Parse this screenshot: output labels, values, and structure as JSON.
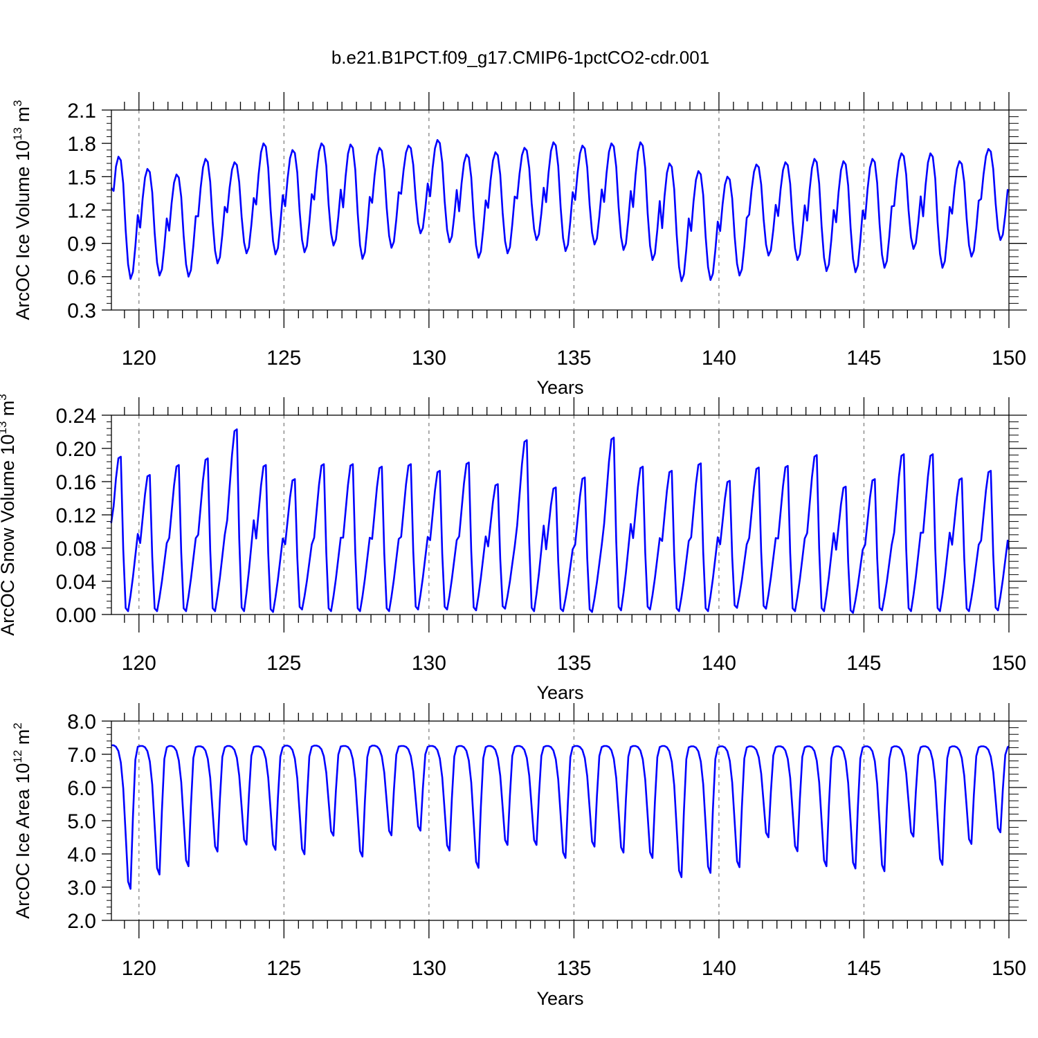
{
  "title": "b.e21.B1PCT.f09_g17.CMIP6-1pctCO2-cdr.001",
  "colors": {
    "series": "#0000ff",
    "axes": "#000000",
    "grid": "#777777"
  },
  "chart_data": [
    {
      "type": "line",
      "ylabel_main": "ArcOC Ice Volume 10",
      "ylabel_sup": "13",
      "ylabel_unit": " m",
      "ylabel_unit_sup": "3",
      "xlabel": "Years",
      "xlim": [
        119.05,
        150.0
      ],
      "ylim": [
        0.3,
        2.1
      ],
      "yticks": [
        0.3,
        0.6,
        0.9,
        1.2,
        1.5,
        1.8,
        2.1
      ],
      "ytick_labels": [
        "0.3",
        "0.6",
        "0.9",
        "1.2",
        "1.5",
        "1.8",
        "2.1"
      ],
      "xticks": [
        120,
        125,
        130,
        135,
        140,
        145,
        150
      ],
      "xtick_labels": [
        "120",
        "125",
        "130",
        "135",
        "140",
        "145",
        "150"
      ],
      "grid_x": "dashed vertical lines at major x ticks",
      "series": [
        {
          "x_start": 119.042,
          "x_step": 0.08333,
          "annual_max": [
            1.68,
            1.57,
            1.52,
            1.66,
            1.63,
            1.8,
            1.74,
            1.8,
            1.79,
            1.76,
            1.78,
            1.83,
            1.7,
            1.72,
            1.76,
            1.81,
            1.78,
            1.8,
            1.81,
            1.62,
            1.55,
            1.5,
            1.61,
            1.63,
            1.66,
            1.64,
            1.66,
            1.71,
            1.71,
            1.64,
            1.75
          ],
          "annual_min": [
            0.58,
            0.61,
            0.6,
            0.72,
            0.81,
            0.8,
            0.82,
            0.88,
            0.76,
            0.86,
            0.99,
            0.91,
            0.77,
            0.81,
            0.93,
            0.83,
            0.89,
            0.84,
            0.75,
            0.56,
            0.57,
            0.61,
            0.79,
            0.75,
            0.65,
            0.64,
            0.68,
            0.85,
            0.68,
            0.78,
            0.93
          ],
          "start_value": 1.4,
          "end_value": 1.36
        }
      ]
    },
    {
      "type": "line",
      "ylabel_main": "ArcOC Snow Volume 10",
      "ylabel_sup": "13",
      "ylabel_unit": " m",
      "ylabel_unit_sup": "3",
      "xlabel": "Years",
      "xlim": [
        119.05,
        150.0
      ],
      "ylim": [
        0.0,
        0.24
      ],
      "yticks": [
        0.0,
        0.04,
        0.08,
        0.12,
        0.16,
        0.2,
        0.24
      ],
      "ytick_labels": [
        "0.00",
        "0.04",
        "0.08",
        "0.12",
        "0.16",
        "0.20",
        "0.24"
      ],
      "xticks": [
        120,
        125,
        130,
        135,
        140,
        145,
        150
      ],
      "xtick_labels": [
        "120",
        "125",
        "130",
        "135",
        "140",
        "145",
        "150"
      ],
      "grid_x": "dashed vertical lines at major x ticks",
      "series": [
        {
          "x_start": 119.042,
          "x_step": 0.08333,
          "annual_max": [
            0.19,
            0.168,
            0.18,
            0.188,
            0.223,
            0.18,
            0.163,
            0.181,
            0.181,
            0.178,
            0.181,
            0.173,
            0.183,
            0.157,
            0.21,
            0.153,
            0.165,
            0.213,
            0.178,
            0.173,
            0.182,
            0.161,
            0.177,
            0.179,
            0.192,
            0.154,
            0.163,
            0.193,
            0.193,
            0.164,
            0.173
          ],
          "annual_min": [
            0.004,
            0.004,
            0.004,
            0.004,
            0.004,
            0.003,
            0.006,
            0.004,
            0.004,
            0.004,
            0.006,
            0.006,
            0.005,
            0.007,
            0.004,
            0.004,
            0.003,
            0.005,
            0.006,
            0.004,
            0.004,
            0.008,
            0.007,
            0.004,
            0.004,
            0.002,
            0.005,
            0.004,
            0.004,
            0.004,
            0.005
          ],
          "start_value": 0.11,
          "end_value": 0.078
        }
      ]
    },
    {
      "type": "line",
      "ylabel_main": "ArcOC Ice Area 10",
      "ylabel_sup": "12",
      "ylabel_unit": " m",
      "ylabel_unit_sup": "2",
      "xlabel": "Years",
      "xlim": [
        119.05,
        150.0
      ],
      "ylim": [
        2.0,
        8.0
      ],
      "yticks": [
        2.0,
        3.0,
        4.0,
        5.0,
        6.0,
        7.0,
        8.0
      ],
      "ytick_labels": [
        "2.0",
        "3.0",
        "4.0",
        "5.0",
        "6.0",
        "7.0",
        "8.0"
      ],
      "xticks": [
        120,
        125,
        130,
        135,
        140,
        145,
        150
      ],
      "xtick_labels": [
        "120",
        "125",
        "130",
        "135",
        "140",
        "145",
        "150"
      ],
      "grid_x": "dashed vertical lines at major x ticks",
      "series": [
        {
          "x_start": 119.042,
          "x_step": 0.08333,
          "annual_max": [
            7.27,
            7.25,
            7.25,
            7.24,
            7.25,
            7.24,
            7.26,
            7.26,
            7.25,
            7.26,
            7.25,
            7.25,
            7.25,
            7.25,
            7.25,
            7.25,
            7.25,
            7.25,
            7.25,
            7.25,
            7.24,
            7.24,
            7.24,
            7.24,
            7.24,
            7.24,
            7.24,
            7.24,
            7.24,
            7.24,
            7.24
          ],
          "annual_min": [
            2.95,
            3.38,
            3.63,
            4.07,
            4.28,
            4.12,
            3.99,
            4.55,
            3.92,
            4.56,
            4.7,
            4.1,
            3.58,
            4.27,
            4.27,
            3.88,
            4.22,
            4.04,
            3.88,
            3.3,
            3.43,
            3.6,
            4.5,
            4.08,
            3.63,
            3.56,
            3.48,
            4.52,
            3.67,
            4.3,
            4.65
          ],
          "start_value": 7.27,
          "end_value": 7.24
        }
      ]
    }
  ]
}
